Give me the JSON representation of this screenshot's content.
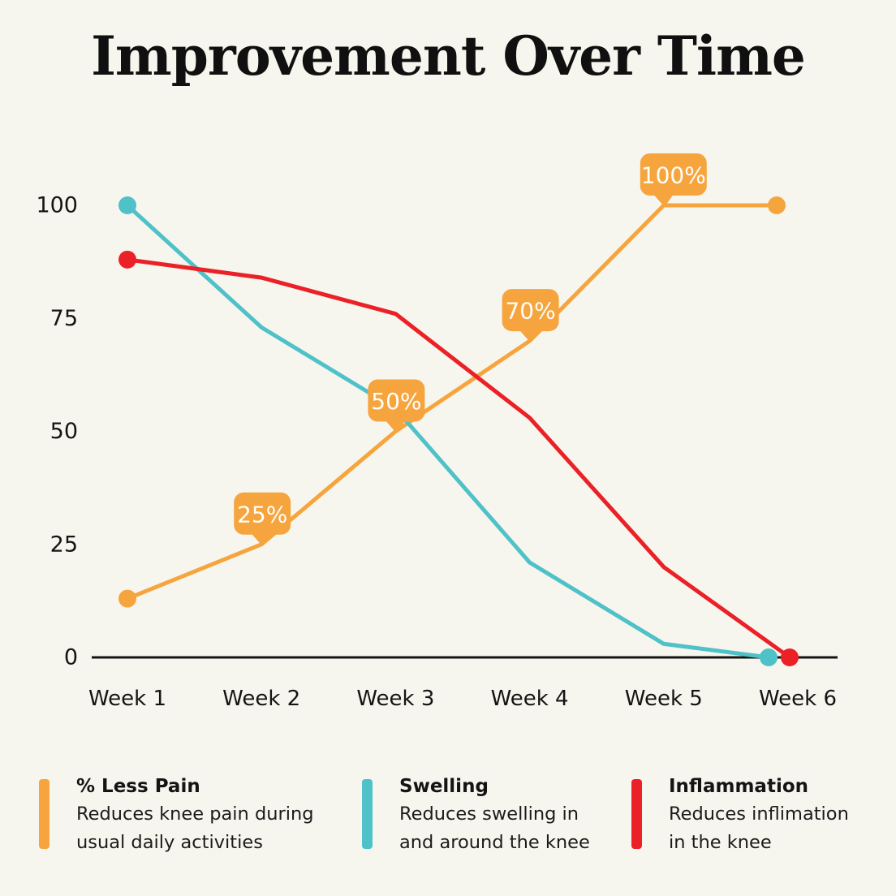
{
  "page": {
    "background": "#F7F6EE"
  },
  "header": {
    "title": "Improvement Over Time"
  },
  "chart_data": {
    "type": "line",
    "title": "Improvement Over Time",
    "categories": [
      "Week 1",
      "Week 2",
      "Week 3",
      "Week 4",
      "Week 5",
      "Week 6"
    ],
    "y_ticks": [
      100,
      75,
      50,
      25,
      0
    ],
    "ylim": [
      0,
      100
    ],
    "grid": false,
    "legend_position": "bottom",
    "axis_color": "#141414",
    "badge_text_color": "#FDFDF8",
    "series": [
      {
        "name": "% Less Pain",
        "color": "#F6A53E",
        "values": [
          13,
          25,
          50,
          70,
          100,
          100
        ],
        "point_labels": [
          "",
          "25%",
          "50%",
          "70%",
          "100%",
          ""
        ]
      },
      {
        "name": "Swelling",
        "color": "#4FC1C8",
        "values": [
          100,
          73,
          55,
          21,
          3,
          0
        ],
        "point_labels": [
          "",
          "",
          "",
          "",
          "",
          ""
        ]
      },
      {
        "name": "Inflammation",
        "color": "#EA2127",
        "values": [
          88,
          84,
          76,
          53,
          20,
          0
        ],
        "point_labels": [
          "",
          "",
          "",
          "",
          "",
          ""
        ]
      }
    ]
  },
  "legend": {
    "items": [
      {
        "title": "% Less Pain",
        "color": "#F6A53E",
        "desc_lines": [
          "Reduces knee pain during",
          "usual daily activities"
        ]
      },
      {
        "title": "Swelling",
        "color": "#4FC1C8",
        "desc_lines": [
          "Reduces swelling in",
          "and around the knee"
        ]
      },
      {
        "title": "Inflammation",
        "color": "#EA2127",
        "desc_lines": [
          "Reduces inflimation",
          "in the knee"
        ]
      }
    ]
  }
}
